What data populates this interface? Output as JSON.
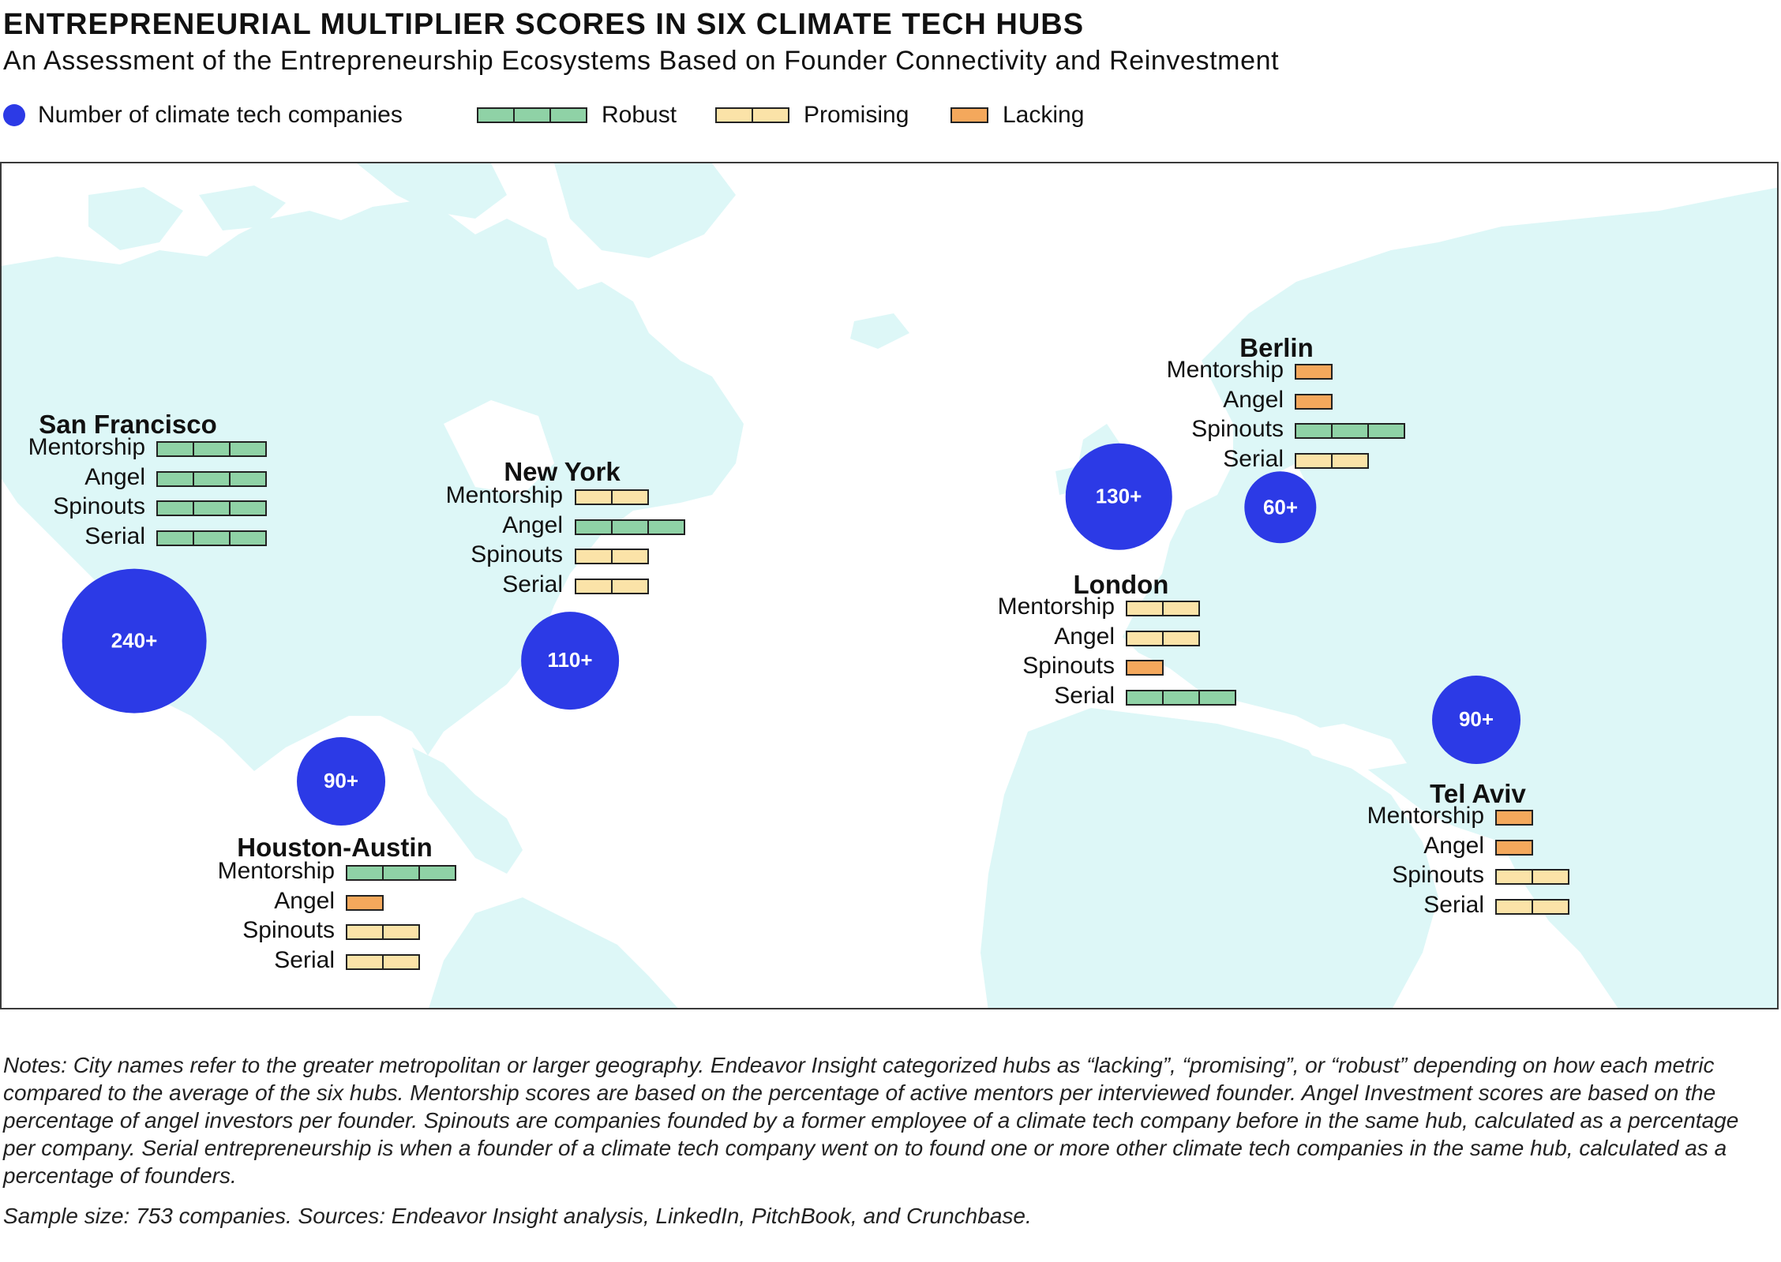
{
  "title": "ENTREPRENEURIAL MULTIPLIER SCORES IN SIX CLIMATE TECH HUBS",
  "subtitle": "An Assessment of the Entrepreneurship Ecosystems Based on Founder Connectivity and Reinvestment",
  "legend": {
    "companies_label": "Number of climate tech companies",
    "robust_label": "Robust",
    "promising_label": "Promising",
    "lacking_label": "Lacking"
  },
  "colors": {
    "bubble": "#2c3ae6",
    "robust": "#8fd2a6",
    "promising": "#fbe3a8",
    "lacking": "#f4a85c",
    "land": "#ddf7f7",
    "frame": "#3a3a3a"
  },
  "score_levels": {
    "Lacking": 1,
    "Promising": 2,
    "Robust": 3
  },
  "hubs": [
    {
      "name": "San Francisco",
      "companies": "240+",
      "companies_value": 240,
      "metrics": [
        {
          "label": "Mentorship",
          "score": "Robust"
        },
        {
          "label": "Angel",
          "score": "Robust"
        },
        {
          "label": "Spinouts",
          "score": "Robust"
        },
        {
          "label": "Serial",
          "score": "Robust"
        }
      ]
    },
    {
      "name": "New York",
      "companies": "110+",
      "companies_value": 110,
      "metrics": [
        {
          "label": "Mentorship",
          "score": "Promising"
        },
        {
          "label": "Angel",
          "score": "Robust"
        },
        {
          "label": "Spinouts",
          "score": "Promising"
        },
        {
          "label": "Serial",
          "score": "Promising"
        }
      ]
    },
    {
      "name": "Houston-Austin",
      "companies": "90+",
      "companies_value": 90,
      "metrics": [
        {
          "label": "Mentorship",
          "score": "Robust"
        },
        {
          "label": "Angel",
          "score": "Lacking"
        },
        {
          "label": "Spinouts",
          "score": "Promising"
        },
        {
          "label": "Serial",
          "score": "Promising"
        }
      ]
    },
    {
      "name": "London",
      "companies": "130+",
      "companies_value": 130,
      "metrics": [
        {
          "label": "Mentorship",
          "score": "Promising"
        },
        {
          "label": "Angel",
          "score": "Promising"
        },
        {
          "label": "Spinouts",
          "score": "Lacking"
        },
        {
          "label": "Serial",
          "score": "Robust"
        }
      ]
    },
    {
      "name": "Berlin",
      "companies": "60+",
      "companies_value": 60,
      "metrics": [
        {
          "label": "Mentorship",
          "score": "Lacking"
        },
        {
          "label": "Angel",
          "score": "Lacking"
        },
        {
          "label": "Spinouts",
          "score": "Robust"
        },
        {
          "label": "Serial",
          "score": "Promising"
        }
      ]
    },
    {
      "name": "Tel Aviv",
      "companies": "90+",
      "companies_value": 90,
      "metrics": [
        {
          "label": "Mentorship",
          "score": "Lacking"
        },
        {
          "label": "Angel",
          "score": "Lacking"
        },
        {
          "label": "Spinouts",
          "score": "Promising"
        },
        {
          "label": "Serial",
          "score": "Promising"
        }
      ]
    }
  ],
  "notes": "Notes: City names refer to the greater metropolitan or larger geography. Endeavor Insight categorized hubs as “lacking”, “promising”, or “robust” depending on how each metric compared to the average of the six hubs. Mentorship scores are based on the percentage of active mentors per interviewed founder. Angel Investment scores are based on the percentage of angel investors per founder. Spinouts are companies founded by a former employee of a climate tech company before in the same hub, calculated as a percentage per company. Serial entrepreneurship is when a founder of a climate tech company went on to found one or more other climate tech companies in the same hub, calculated as a percentage of founders.",
  "sources": "Sample size: 753 companies. Sources: Endeavor Insight analysis, LinkedIn, PitchBook, and Crunchbase."
}
